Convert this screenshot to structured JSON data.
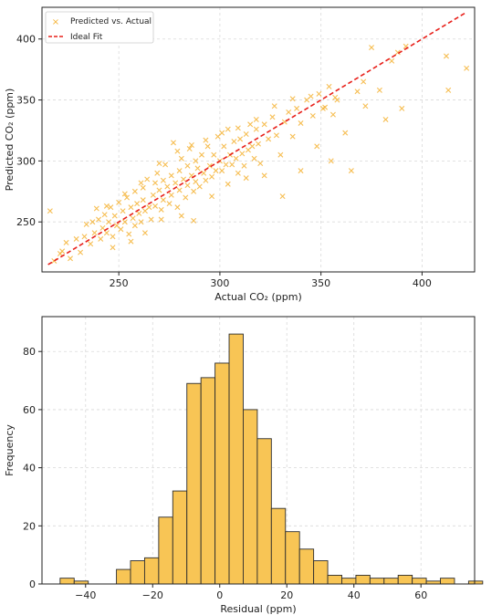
{
  "colors": {
    "scatter": "#f5b335",
    "ideal": "#e8201a",
    "bar_fill": "#f8c555",
    "bar_edge": "#2d2d2d"
  },
  "chart_data": [
    {
      "type": "scatter",
      "xlabel": "Actual CO₂ (ppm)",
      "ylabel": "Predicted CO₂ (ppm)",
      "xlim": [
        212,
        426
      ],
      "ylim": [
        209,
        426
      ],
      "xticks": [
        250,
        300,
        350,
        400
      ],
      "yticks": [
        250,
        300,
        350,
        400
      ],
      "grid": true,
      "legend_position": "top-left",
      "series": [
        {
          "name": "Predicted vs. Actual",
          "marker": "x",
          "points": [
            [
              216,
              259
            ],
            [
              218,
              218
            ],
            [
              221,
              224
            ],
            [
              224,
              233
            ],
            [
              226,
              220
            ],
            [
              229,
              236
            ],
            [
              231,
              225
            ],
            [
              233,
              238
            ],
            [
              234,
              248
            ],
            [
              236,
              232
            ],
            [
              237,
              250
            ],
            [
              238,
              241
            ],
            [
              240,
              252
            ],
            [
              241,
              236
            ],
            [
              242,
              245
            ],
            [
              243,
              256
            ],
            [
              244,
              241
            ],
            [
              245,
              250
            ],
            [
              246,
              262
            ],
            [
              247,
              238
            ],
            [
              248,
              255
            ],
            [
              249,
              247
            ],
            [
              250,
              266
            ],
            [
              251,
              244
            ],
            [
              252,
              259
            ],
            [
              253,
              250
            ],
            [
              254,
              270
            ],
            [
              255,
              240
            ],
            [
              256,
              262
            ],
            [
              257,
              253
            ],
            [
              258,
              275
            ],
            [
              258,
              247
            ],
            [
              259,
              265
            ],
            [
              260,
              257
            ],
            [
              261,
              250
            ],
            [
              262,
              278
            ],
            [
              262,
              268
            ],
            [
              263,
              259
            ],
            [
              264,
              285
            ],
            [
              265,
              262
            ],
            [
              266,
              252
            ],
            [
              267,
              272
            ],
            [
              268,
              282
            ],
            [
              268,
              263
            ],
            [
              269,
              290
            ],
            [
              270,
              276
            ],
            [
              271,
              260
            ],
            [
              272,
              284
            ],
            [
              272,
              268
            ],
            [
              273,
              297
            ],
            [
              274,
              279
            ],
            [
              275,
              265
            ],
            [
              276,
              288
            ],
            [
              276,
              272
            ],
            [
              277,
              315
            ],
            [
              278,
              282
            ],
            [
              279,
              262
            ],
            [
              280,
              292
            ],
            [
              280,
              276
            ],
            [
              281,
              302
            ],
            [
              282,
              285
            ],
            [
              283,
              270
            ],
            [
              284,
              296
            ],
            [
              284,
              280
            ],
            [
              285,
              310
            ],
            [
              286,
              288
            ],
            [
              287,
              275
            ],
            [
              288,
              300
            ],
            [
              288,
              283
            ],
            [
              289,
              294
            ],
            [
              290,
              279
            ],
            [
              291,
              305
            ],
            [
              292,
              290
            ],
            [
              293,
              284
            ],
            [
              294,
              312
            ],
            [
              295,
              296
            ],
            [
              296,
              287
            ],
            [
              297,
              305
            ],
            [
              298,
              292
            ],
            [
              299,
              320
            ],
            [
              300,
              300
            ],
            [
              301,
              292
            ],
            [
              302,
              312
            ],
            [
              303,
              297
            ],
            [
              304,
              326
            ],
            [
              305,
              305
            ],
            [
              306,
              297
            ],
            [
              307,
              316
            ],
            [
              308,
              302
            ],
            [
              309,
              290
            ],
            [
              310,
              318
            ],
            [
              311,
              306
            ],
            [
              312,
              296
            ],
            [
              313,
              322
            ],
            [
              314,
              309
            ],
            [
              315,
              330
            ],
            [
              316,
              312
            ],
            [
              317,
              302
            ],
            [
              318,
              326
            ],
            [
              319,
              314
            ],
            [
              320,
              298
            ],
            [
              322,
              330
            ],
            [
              324,
              318
            ],
            [
              326,
              336
            ],
            [
              328,
              321
            ],
            [
              330,
              305
            ],
            [
              332,
              332
            ],
            [
              334,
              340
            ],
            [
              336,
              320
            ],
            [
              338,
              343
            ],
            [
              340,
              331
            ],
            [
              343,
              350
            ],
            [
              346,
              337
            ],
            [
              349,
              355
            ],
            [
              352,
              344
            ],
            [
              354,
              361
            ],
            [
              356,
              338
            ],
            [
              358,
              350
            ],
            [
              362,
              323
            ],
            [
              365,
              292
            ],
            [
              368,
              357
            ],
            [
              372,
              345
            ],
            [
              375,
              393
            ],
            [
              379,
              358
            ],
            [
              382,
              334
            ],
            [
              385,
              382
            ],
            [
              388,
              389
            ],
            [
              390,
              343
            ],
            [
              392,
              394
            ],
            [
              412,
              386
            ],
            [
              413,
              358
            ],
            [
              422,
              376
            ],
            [
              222,
              226
            ],
            [
              239,
              261
            ],
            [
              247,
              229
            ],
            [
              256,
              234
            ],
            [
              263,
              241
            ],
            [
              271,
              252
            ],
            [
              281,
              255
            ],
            [
              287,
              251
            ],
            [
              296,
              271
            ],
            [
              304,
              281
            ],
            [
              313,
              286
            ],
            [
              322,
              288
            ],
            [
              331,
              271
            ],
            [
              340,
              292
            ],
            [
              348,
              312
            ],
            [
              355,
              300
            ],
            [
              244,
              263
            ],
            [
              253,
              273
            ],
            [
              261,
              282
            ],
            [
              270,
              298
            ],
            [
              279,
              308
            ],
            [
              286,
              313
            ],
            [
              293,
              317
            ],
            [
              301,
              323
            ],
            [
              309,
              327
            ],
            [
              318,
              334
            ],
            [
              327,
              345
            ],
            [
              336,
              351
            ],
            [
              345,
              353
            ],
            [
              351,
              343
            ],
            [
              357,
              352
            ],
            [
              371,
              365
            ]
          ]
        },
        {
          "name": "Ideal Fit",
          "line": true,
          "style": "dashed",
          "points": [
            [
              215,
              215
            ],
            [
              422,
              422
            ]
          ]
        }
      ]
    },
    {
      "type": "bar",
      "subtype": "histogram",
      "xlabel": "Residual (ppm)",
      "ylabel": "Frequency",
      "xlim": [
        -53,
        76
      ],
      "ylim": [
        0,
        92
      ],
      "xticks": [
        -40,
        -20,
        0,
        20,
        40,
        60
      ],
      "yticks": [
        0,
        20,
        40,
        60,
        80
      ],
      "grid": true,
      "bin_width": 4.2,
      "bin_start": -47.6,
      "values": [
        2,
        1,
        0,
        0,
        5,
        8,
        9,
        23,
        32,
        69,
        71,
        76,
        86,
        60,
        50,
        26,
        18,
        12,
        8,
        3,
        2,
        3,
        2,
        2,
        3,
        2,
        1,
        2,
        0,
        1
      ]
    }
  ]
}
